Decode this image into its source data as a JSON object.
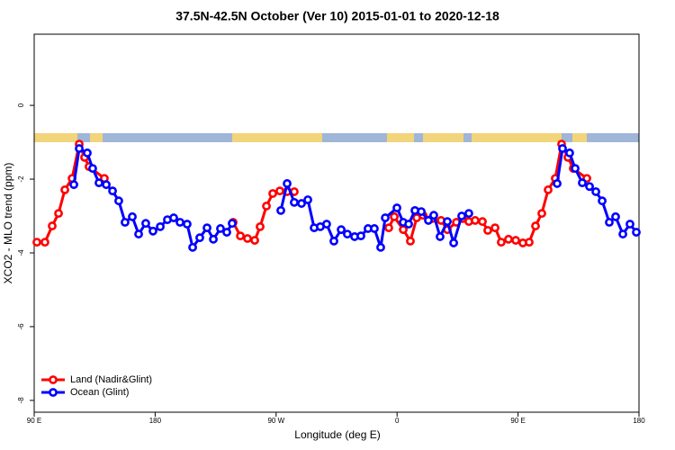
{
  "chart_data": {
    "type": "line",
    "title": "37.5N-42.5N October (Ver 10)   2015-01-01 to 2020-12-18",
    "x_label": "Longitude (deg E)",
    "y_label": "XCO2 - MLO trend (ppm)",
    "xlim": [
      90,
      540
    ],
    "xticks": [
      {
        "value": 90,
        "label": "90 E"
      },
      180,
      {
        "value": 270,
        "label": "90 W"
      },
      {
        "value": 360,
        "label": "0"
      },
      {
        "value": 450,
        "label": "90 E"
      },
      {
        "value": 540,
        "label": "180"
      }
    ],
    "ylim": [
      -8.32,
      1.93
    ],
    "yticks": [
      0,
      -2,
      -4,
      -6,
      -8
    ],
    "legend": "bottom-left",
    "series": [
      {
        "name": "Land (Nadir&Glint)",
        "color": "#ff0000",
        "x": [
          92.0,
          98.0,
          103.4,
          108.1,
          112.8,
          118.2,
          123.5,
          127.5,
          130.8,
          142.2,
          null,
          238.0,
          243.4,
          248.7,
          254.1,
          258.1,
          262.8,
          267.5,
          272.8,
          278.2,
          283.5,
          null,
          353.8,
          357.9,
          364.6,
          369.9,
          374.6,
          379.3,
          386.0,
          392.7,
          397.4,
          404.1,
          408.8,
          413.4,
          418.1,
          423.5,
          427.5,
          432.9,
          437.5,
          442.9,
          448.3,
          453.6,
          458.3,
          463.0,
          467.7,
          472.4,
          477.7,
          482.4,
          487.1,
          491.1,
          501.2
        ],
        "values": [
          -3.71,
          -3.71,
          -3.27,
          -2.93,
          -2.29,
          -1.98,
          -1.05,
          -1.41,
          -1.66,
          -1.98,
          null,
          -3.17,
          -3.54,
          -3.61,
          -3.66,
          -3.29,
          -2.73,
          -2.39,
          -2.32,
          -2.34,
          -2.34,
          null,
          -3.32,
          -3.02,
          -3.37,
          -3.68,
          -3.05,
          -2.98,
          -3.07,
          -3.12,
          -3.37,
          -3.17,
          -3.07,
          -3.15,
          -3.12,
          -3.15,
          -3.39,
          -3.32,
          -3.71,
          -3.63,
          -3.66,
          -3.73,
          -3.71,
          -3.27,
          -2.93,
          -2.29,
          -1.98,
          -1.05,
          -1.41,
          -1.71,
          -1.98
        ]
      },
      {
        "name": "Ocean (Glint)",
        "color": "#0000ff",
        "x": [
          119.5,
          123.5,
          129.5,
          133.5,
          138.2,
          143.6,
          148.3,
          152.9,
          157.6,
          163.0,
          167.7,
          173.0,
          178.4,
          183.8,
          189.1,
          193.8,
          198.5,
          203.8,
          207.9,
          213.2,
          218.6,
          223.3,
          228.6,
          233.3,
          237.3,
          null,
          273.5,
          278.2,
          283.5,
          288.9,
          293.6,
          298.3,
          302.9,
          307.6,
          313.0,
          318.4,
          323.0,
          328.4,
          333.1,
          338.4,
          343.1,
          347.8,
          351.2,
          359.9,
          364.6,
          368.6,
          373.3,
          378.0,
          383.3,
          387.3,
          392.0,
          397.4,
          402.1,
          408.1,
          413.4,
          null,
          479.1,
          483.1,
          488.4,
          492.5,
          497.8,
          503.2,
          507.9,
          512.6,
          517.9,
          522.6,
          528.0,
          533.3,
          538.0
        ],
        "values": [
          -2.15,
          -1.17,
          -1.29,
          -1.71,
          -2.1,
          -2.15,
          -2.32,
          -2.59,
          -3.17,
          -3.02,
          -3.49,
          -3.2,
          -3.41,
          -3.29,
          -3.1,
          -3.05,
          -3.17,
          -3.22,
          -3.85,
          -3.59,
          -3.32,
          -3.63,
          -3.34,
          -3.44,
          -3.2,
          null,
          -2.85,
          -2.12,
          -2.63,
          -2.66,
          -2.56,
          -3.32,
          -3.29,
          -3.22,
          -3.68,
          -3.37,
          -3.49,
          -3.56,
          -3.54,
          -3.34,
          -3.34,
          -3.85,
          -3.05,
          -2.78,
          -3.17,
          -3.22,
          -2.85,
          -2.88,
          -3.12,
          -2.98,
          -3.56,
          -3.15,
          -3.73,
          -3.0,
          -2.93,
          null,
          -2.12,
          -1.17,
          -1.29,
          -1.71,
          -2.1,
          -2.2,
          -2.34,
          -2.59,
          -3.17,
          -3.02,
          -3.49,
          -3.22,
          -3.44
        ]
      }
    ]
  }
}
